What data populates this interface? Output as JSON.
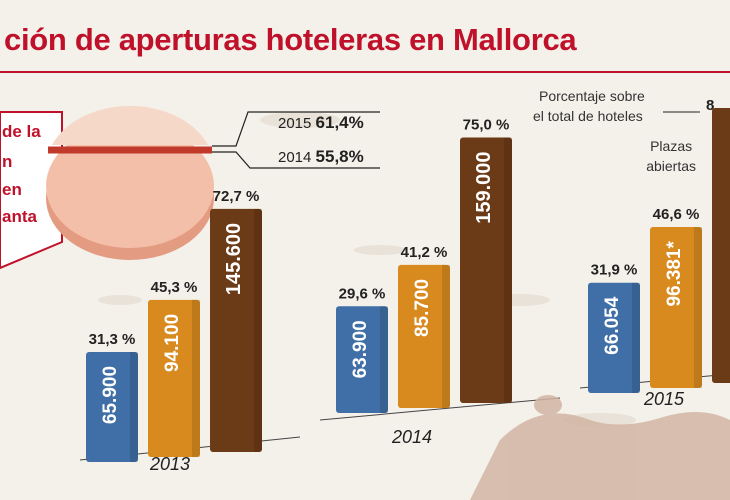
{
  "title": "ción de aperturas hoteleras en Mallorca",
  "legend": {
    "pie_label": [
      "de la",
      "n",
      "en",
      "anta"
    ],
    "pie_2015": {
      "year": "2015",
      "value": "61,4%"
    },
    "pie_2014": {
      "year": "2014",
      "value": "55,8%"
    },
    "porcentaje_label": [
      "Porcentaje sobre",
      "el total de hoteles"
    ],
    "porcentaje_value": "8",
    "plazas_label": [
      "Plazas",
      "abiertas"
    ]
  },
  "colors": {
    "blue": "#3f6fa6",
    "orange": "#d98a1f",
    "brown": "#6b3a16",
    "red": "#c0112b",
    "pie_top": "#f6cdb9",
    "pie_side": "#e39b82"
  },
  "chart_data": {
    "type": "bar",
    "title": "ción de aperturas hoteleras en Mallorca",
    "categories": [
      "2013",
      "2014",
      "2015"
    ],
    "series": [
      {
        "values": [
          65900,
          63900,
          66054
        ],
        "labels": [
          "65.900",
          "63.900",
          "66.054"
        ],
        "pct": [
          "31,3 %",
          "29,6 %",
          "31,9 %"
        ]
      },
      {
        "values": [
          94100,
          85700,
          96381
        ],
        "labels": [
          "94.100",
          "85.700",
          "96.381*"
        ],
        "pct": [
          "45,3 %",
          "41,2 %",
          "46,6 %"
        ]
      },
      {
        "values": [
          145600,
          159000,
          null
        ],
        "labels": [
          "145.600",
          "159.000",
          ""
        ],
        "pct": [
          "72,7 %",
          "75,0 %",
          ""
        ]
      }
    ]
  }
}
